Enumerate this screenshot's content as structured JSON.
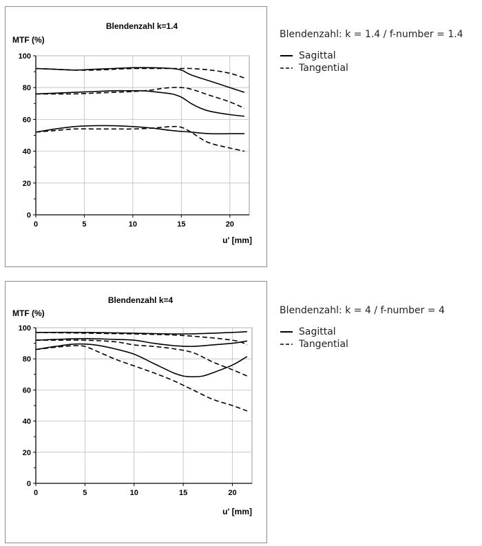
{
  "chart_data": [
    {
      "type": "line",
      "title": "Blendenzahl k=1.4",
      "ylabel": "MTF (%)",
      "xlabel": "u' [mm]",
      "xlim": [
        0,
        22
      ],
      "ylim": [
        0,
        100
      ],
      "xticks": [
        0,
        5,
        10,
        15,
        20
      ],
      "yticks": [
        0,
        20,
        40,
        60,
        80,
        100
      ],
      "grid": true,
      "series": [
        {
          "style": "solid",
          "x": [
            0,
            2,
            4,
            6,
            8,
            10,
            12,
            14,
            15,
            16,
            18,
            20,
            21.5
          ],
          "y": [
            92,
            91.5,
            91,
            91.5,
            92,
            92.5,
            92.5,
            92,
            91,
            88,
            84,
            80,
            77
          ]
        },
        {
          "style": "dashed",
          "x": [
            0,
            2,
            4,
            6,
            8,
            10,
            12,
            14,
            15,
            16,
            18,
            20,
            21.5
          ],
          "y": [
            92,
            91.5,
            91,
            91,
            91.5,
            92,
            92,
            92,
            92,
            92,
            91,
            89,
            86
          ]
        },
        {
          "style": "solid",
          "x": [
            0,
            2,
            4,
            6,
            8,
            10,
            11,
            12,
            14,
            15,
            16,
            17,
            18,
            20,
            21.5
          ],
          "y": [
            76,
            76.5,
            77,
            77.5,
            78,
            78,
            78,
            77.5,
            76,
            74,
            70,
            67,
            65,
            63,
            62
          ]
        },
        {
          "style": "dashed",
          "x": [
            0,
            2,
            4,
            6,
            8,
            10,
            12,
            13,
            14,
            15,
            16,
            18,
            20,
            21.5
          ],
          "y": [
            76,
            76,
            76,
            76.5,
            77,
            77.5,
            78.5,
            79.5,
            80,
            80,
            79,
            75,
            71,
            67
          ]
        },
        {
          "style": "solid",
          "x": [
            0,
            2,
            4,
            6,
            8,
            10,
            12,
            14,
            16,
            18,
            20,
            21.5
          ],
          "y": [
            52,
            54,
            55.5,
            56,
            56,
            55.5,
            54.5,
            53,
            52,
            51,
            51,
            51
          ]
        },
        {
          "style": "dashed",
          "x": [
            0,
            2,
            4,
            6,
            8,
            10,
            12,
            14,
            15,
            16,
            17,
            18,
            20,
            21.5
          ],
          "y": [
            52,
            53,
            54,
            54,
            54,
            54,
            54.5,
            55.5,
            55,
            52,
            48,
            45,
            42,
            40
          ]
        }
      ]
    },
    {
      "type": "line",
      "title": "Blendenzahl k=4",
      "ylabel": "MTF (%)",
      "xlabel": "u' [mm]",
      "xlim": [
        0,
        22
      ],
      "ylim": [
        0,
        100
      ],
      "xticks": [
        0,
        5,
        10,
        15,
        20
      ],
      "yticks": [
        0,
        20,
        40,
        60,
        80,
        100
      ],
      "grid": true,
      "series": [
        {
          "style": "solid",
          "x": [
            0,
            5,
            10,
            15,
            20,
            21.5
          ],
          "y": [
            97,
            97,
            96.5,
            96,
            97,
            97.5
          ]
        },
        {
          "style": "dashed",
          "x": [
            0,
            5,
            10,
            15,
            20,
            21.5
          ],
          "y": [
            97,
            96.5,
            96,
            95,
            92,
            89
          ]
        },
        {
          "style": "solid",
          "x": [
            0,
            2,
            5,
            8,
            10,
            12,
            14,
            16,
            18,
            20,
            21.5
          ],
          "y": [
            92,
            92.5,
            93,
            92.5,
            92,
            90,
            88.5,
            88,
            89,
            90,
            91.5
          ]
        },
        {
          "style": "dashed",
          "x": [
            0,
            2,
            5,
            8,
            10,
            12,
            14,
            16,
            18,
            20,
            21.5
          ],
          "y": [
            92,
            92,
            92,
            91,
            89,
            88,
            86.5,
            84,
            78,
            73,
            69
          ]
        },
        {
          "style": "solid",
          "x": [
            0,
            2,
            4,
            6,
            8,
            10,
            12,
            14,
            15,
            16,
            17,
            18,
            20,
            21.5
          ],
          "y": [
            86,
            88,
            89.5,
            89,
            86.5,
            83,
            77,
            71,
            69,
            68.5,
            69,
            71,
            76,
            81.5
          ]
        },
        {
          "style": "dashed",
          "x": [
            0,
            2,
            4,
            5,
            6,
            8,
            10,
            12,
            14,
            16,
            18,
            20,
            21.5
          ],
          "y": [
            86,
            87.5,
            88.5,
            88,
            85.5,
            80,
            75.5,
            71,
            66,
            60,
            54,
            50,
            46.5
          ]
        }
      ]
    }
  ],
  "side_panels": [
    {
      "caption": "Blendenzahl: k = 1.4 / f-number = 1.4",
      "legend": [
        {
          "label": "Sagittal",
          "style": "solid"
        },
        {
          "label": "Tangential",
          "style": "dashed"
        }
      ]
    },
    {
      "caption": "Blendenzahl: k = 4 / f-number = 4",
      "legend": [
        {
          "label": "Sagittal",
          "style": "solid"
        },
        {
          "label": "Tangential",
          "style": "dashed"
        }
      ]
    }
  ]
}
